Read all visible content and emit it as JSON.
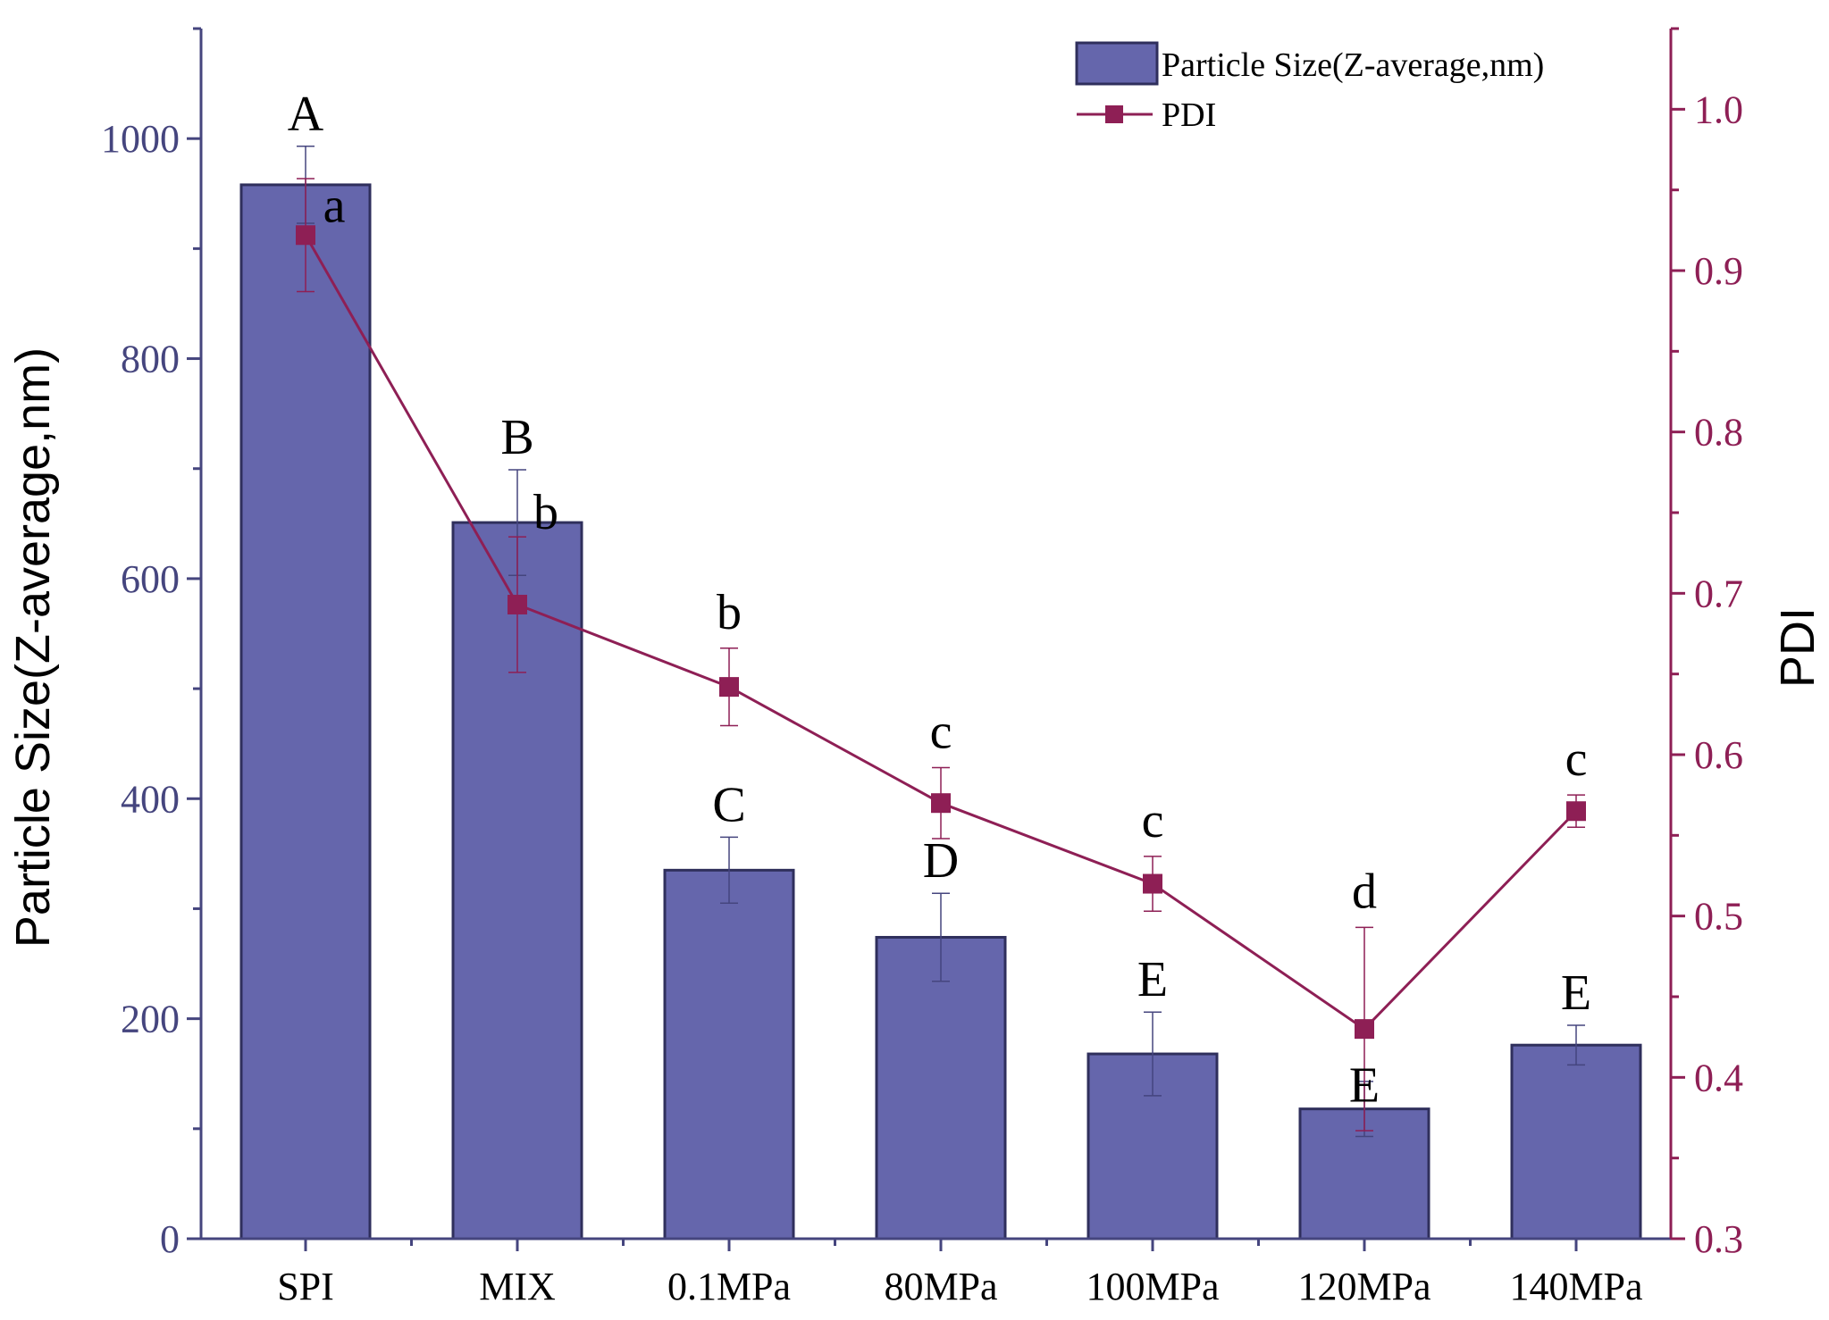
{
  "chart_data": {
    "type": "bar+line",
    "categories": [
      "SPI",
      "MIX",
      "0.1MPa",
      "80MPa",
      "100MPa",
      "120MPa",
      "140MPa"
    ],
    "bar_series": {
      "name": "Particle Size(Z-average,nm)",
      "values": [
        958,
        651,
        335,
        274,
        168,
        118,
        176
      ],
      "errors": [
        35,
        48,
        30,
        40,
        38,
        25,
        18
      ],
      "letters": [
        "A",
        "B",
        "C",
        "D",
        "E",
        "E",
        "E"
      ],
      "color": "#6566ac"
    },
    "line_series": {
      "name": "PDI",
      "values": [
        0.922,
        0.693,
        0.642,
        0.57,
        0.52,
        0.43,
        0.565
      ],
      "errors": [
        0.035,
        0.042,
        0.024,
        0.022,
        0.017,
        0.063,
        0.01
      ],
      "letters": [
        "a",
        "b",
        "b",
        "c",
        "c",
        "d",
        "c"
      ],
      "color": "#8e1f55"
    },
    "ylabel_left": "Particle Size(Z-average,nm)",
    "ylabel_right": "PDI",
    "ylim_left": [
      0,
      1100
    ],
    "ylim_right": [
      0.3,
      1.05
    ],
    "yticks_left": [
      "0",
      "200",
      "400",
      "600",
      "800",
      "1000"
    ],
    "yticks_right": [
      "0.3",
      "0.4",
      "0.5",
      "0.6",
      "0.7",
      "0.8",
      "0.9",
      "1.0"
    ],
    "legend": [
      "Particle Size(Z-average,nm)",
      "PDI"
    ],
    "left_axis_color": "#45457e",
    "right_axis_color": "#8e1f55"
  }
}
